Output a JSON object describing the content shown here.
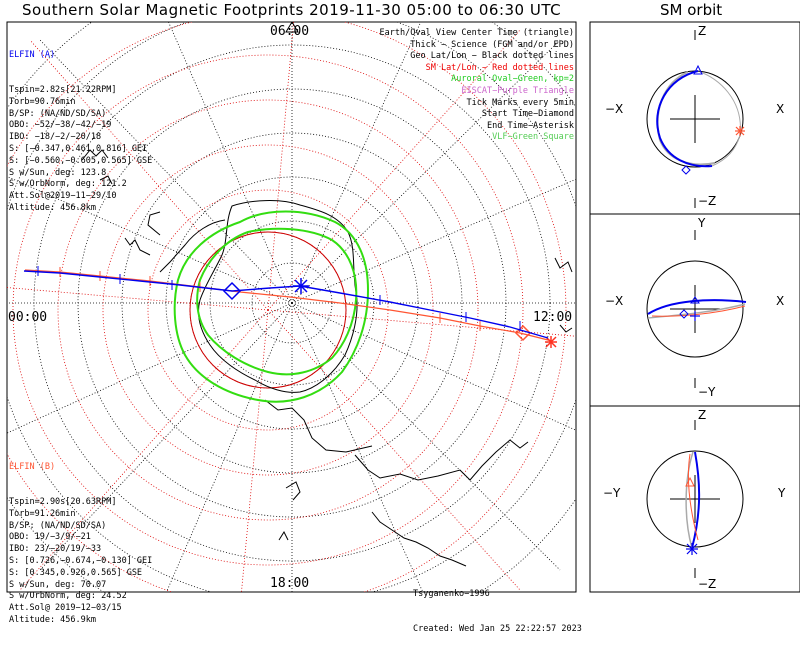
{
  "title": "Southern Solar Magnetic Footprints 2019-11-30 05:00 to 06:30 UTC",
  "orbit_title": "SM orbit",
  "mlt_labels": {
    "top": "06:00",
    "left": "00:00",
    "right": "12:00",
    "bottom": "18:00"
  },
  "elfin_a": {
    "name": "ELFIN (A)",
    "color": "#0000ee",
    "lines": [
      "Tspin=2.82s[21.22RPM]",
      "Torb=90.76min",
      "B/SP: (NA/ND/SD/SA)",
      "OBO: −52/−38/−42/−19",
      "IBO: −18/−2/−20/18",
      "S: [−0.347,0.461,0.816] GEI",
      "S: [−0.560,−0.605,0.565] GSE",
      "S w/Sun, deg: 123.8",
      "S w/OrbNorm, deg: 121.2",
      "Att.Sol@2019−11−29/10",
      "Altitude: 456.8km"
    ]
  },
  "elfin_b": {
    "name": "ELFIN (B)",
    "color": "#ff5533",
    "lines": [
      "Tspin=2.90s[20.63RPM]",
      "Torb=91.26min",
      "B/SP: (NA/ND/SD/SA)",
      "OBO: 19/−3/9/−21",
      "IBO: 23/−20/19/−33",
      "S: [0.726,−0.674,−0.130] GEI",
      "S: [0.345,0.926,0.565] GSE",
      "S w/Sun, deg: 70.07",
      "S w/OrbNorm, deg: 24.52",
      "Att.Sol@ 2019−12−03/15",
      "Altitude: 456.9km"
    ]
  },
  "legend": [
    {
      "text": "Earth/Oval View Center Time (triangle)",
      "color": "#000000"
    },
    {
      "text": "Thick − Science (FGM and/or EPD)",
      "color": "#000000"
    },
    {
      "text": "Geo Lat/Lon − Black dotted lines",
      "color": "#000000"
    },
    {
      "text": "SM Lat/Lon − Red dotted lines",
      "color": "#ee0000"
    },
    {
      "text": "Auroral Oval−Green, kp=2",
      "color": "#22cc22"
    },
    {
      "text": "EISCAT−Purple Triangle",
      "color": "#cc66cc"
    },
    {
      "text": "Tick Marks every 5min",
      "color": "#000000"
    },
    {
      "text": "Start Time−Diamond",
      "color": "#000000"
    },
    {
      "text": "End Time−Asterisk",
      "color": "#000000"
    },
    {
      "text": "VLF−Green Square",
      "color": "#55cc55"
    }
  ],
  "credits": [
    "Tsyganenko−1996",
    "Created: Wed Jan 25 22:22:57 2023"
  ],
  "orbit_panels": [
    {
      "top": "Z",
      "bottom": "−Z",
      "left": "−X",
      "right": "X"
    },
    {
      "top": "Y",
      "bottom": "−Y",
      "left": "−X",
      "right": "X"
    },
    {
      "top": "Z",
      "bottom": "−Z",
      "left": "−Y",
      "right": "Y"
    }
  ]
}
